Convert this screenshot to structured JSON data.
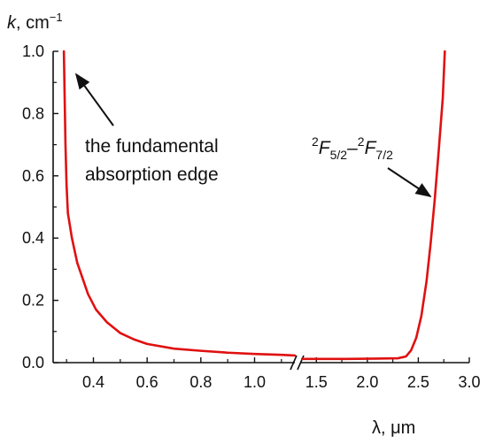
{
  "chart_data": {
    "type": "line",
    "y_axis": {
      "label_var": "k",
      "label_unit": ", cm",
      "label_unit_sup": "−1",
      "range": [
        0.0,
        1.0
      ],
      "ticks": [
        "0.0",
        "0.2",
        "0.4",
        "0.6",
        "0.8",
        "1.0"
      ]
    },
    "x_axis": {
      "label": "λ, μm",
      "broken": true,
      "segment1": {
        "range": [
          0.25,
          1.15
        ],
        "ticks": [
          "0.4",
          "0.6",
          "0.8",
          "1.0"
        ]
      },
      "segment2": {
        "range": [
          1.35,
          3.0
        ],
        "ticks": [
          "1.5",
          "2.0",
          "2.5",
          "3.0"
        ]
      }
    },
    "series": [
      {
        "color": "#e01010",
        "segment1": [
          [
            0.29,
            1.0
          ],
          [
            0.293,
            0.85
          ],
          [
            0.296,
            0.7
          ],
          [
            0.3,
            0.57
          ],
          [
            0.305,
            0.48
          ],
          [
            0.32,
            0.4
          ],
          [
            0.34,
            0.32
          ],
          [
            0.36,
            0.27
          ],
          [
            0.38,
            0.22
          ],
          [
            0.41,
            0.17
          ],
          [
            0.45,
            0.13
          ],
          [
            0.5,
            0.095
          ],
          [
            0.55,
            0.075
          ],
          [
            0.6,
            0.06
          ],
          [
            0.7,
            0.045
          ],
          [
            0.8,
            0.038
          ],
          [
            0.9,
            0.032
          ],
          [
            1.0,
            0.028
          ],
          [
            1.1,
            0.025
          ],
          [
            1.15,
            0.023
          ]
        ],
        "segment2": [
          [
            1.36,
            0.012
          ],
          [
            1.5,
            0.012
          ],
          [
            1.8,
            0.012
          ],
          [
            2.1,
            0.013
          ],
          [
            2.3,
            0.014
          ],
          [
            2.38,
            0.02
          ],
          [
            2.43,
            0.04
          ],
          [
            2.48,
            0.08
          ],
          [
            2.53,
            0.15
          ],
          [
            2.58,
            0.26
          ],
          [
            2.62,
            0.38
          ],
          [
            2.66,
            0.52
          ],
          [
            2.7,
            0.68
          ],
          [
            2.74,
            0.85
          ],
          [
            2.76,
            1.0
          ]
        ]
      }
    ],
    "annotations": [
      {
        "lines": [
          "the fundamental",
          "absorption edge"
        ],
        "points_to": {
          "segment": 1,
          "x": 0.3,
          "y": 0.92
        }
      },
      {
        "label": "²F5/2–²F7/2",
        "points_to": {
          "segment": 2,
          "x": 2.66,
          "y": 0.57
        }
      }
    ]
  }
}
